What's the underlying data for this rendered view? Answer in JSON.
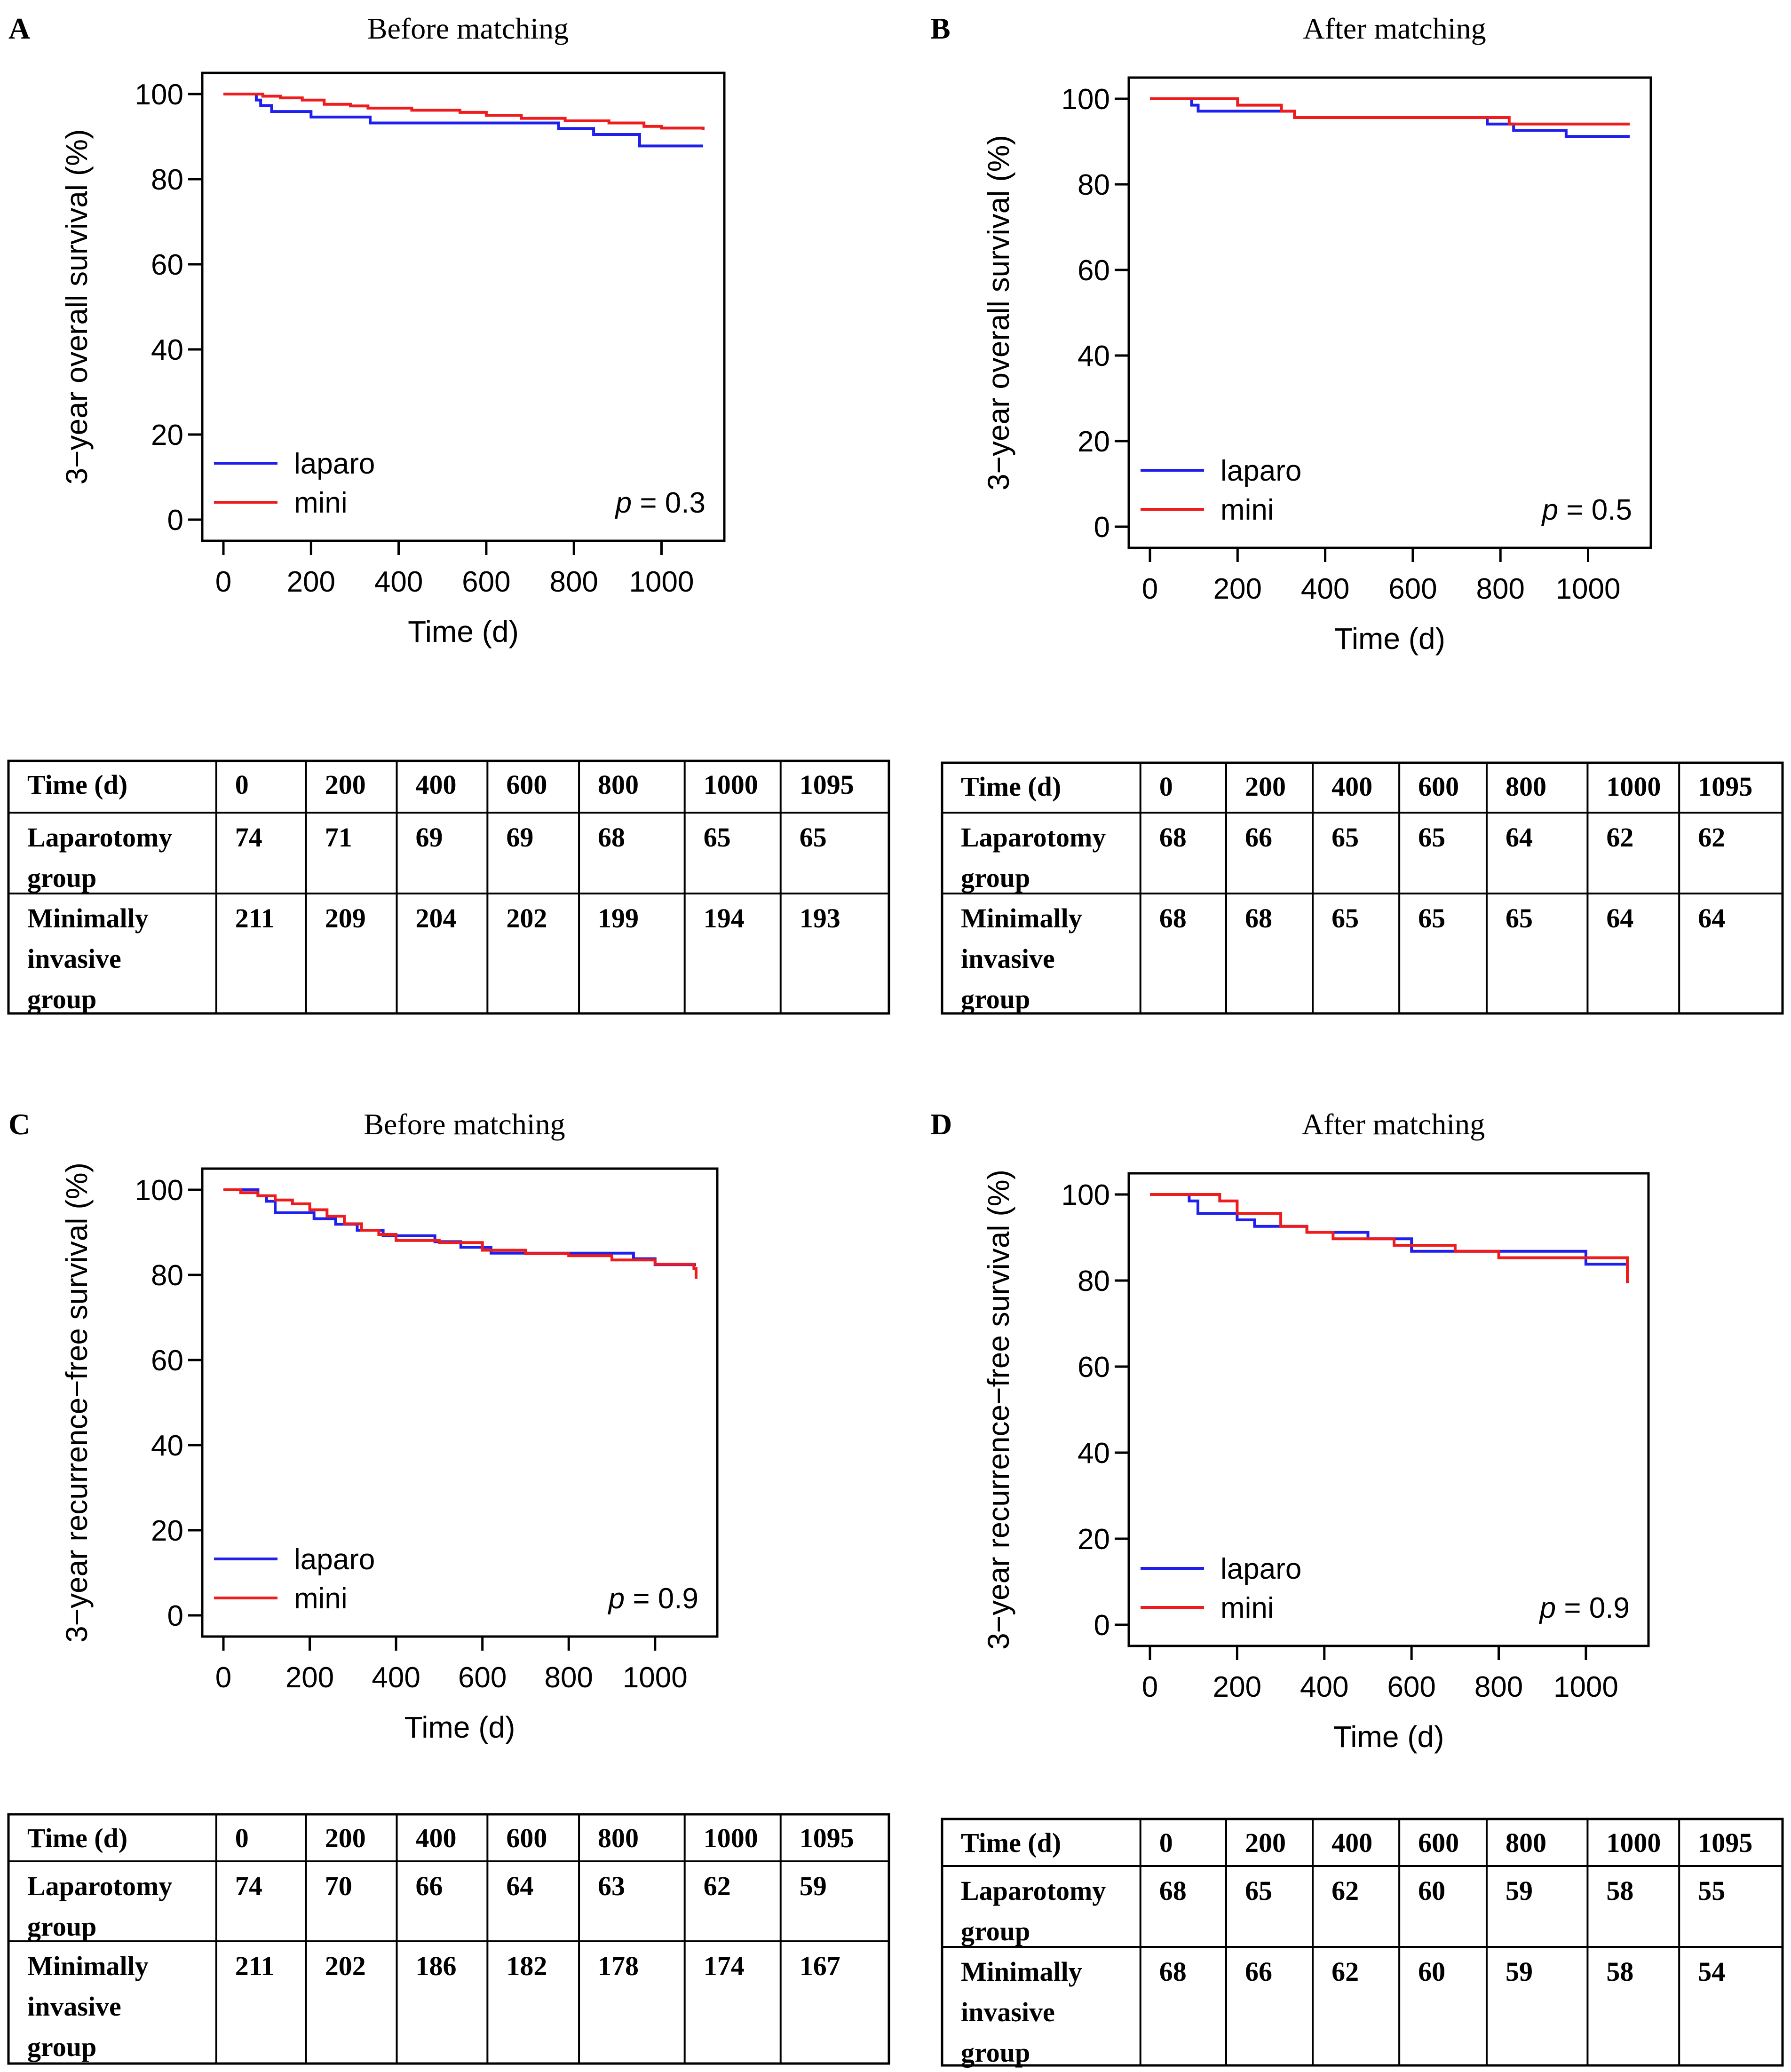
{
  "time_header": "Time (d)",
  "row_labels": {
    "laparotomy": [
      "Laparotomy",
      "group"
    ],
    "minimally": [
      "Minimally",
      "invasive",
      "group"
    ]
  },
  "colors": {
    "laparo": "#2020ee",
    "mini": "#ee1c1c"
  },
  "chart_data": [
    {
      "id": "A",
      "letter": "A",
      "type": "line",
      "title": "Before matching",
      "ylabel": "3−year overall survival (%)",
      "xlabel": "Time (d)",
      "xlim": [
        0,
        1095
      ],
      "ylim": [
        0,
        100
      ],
      "xticks": [
        0,
        200,
        400,
        600,
        800,
        1000
      ],
      "yticks": [
        0,
        20,
        40,
        60,
        80,
        100
      ],
      "legend_position": "bottom-left",
      "pvalue_label": "p",
      "pvalue_text": " = 0.3",
      "series": [
        {
          "name": "laparo",
          "color": "#2020ee",
          "x": [
            0,
            75,
            85,
            110,
            200,
            335,
            400,
            600,
            765,
            800,
            845,
            950,
            1095
          ],
          "y": [
            100,
            98.6,
            97.3,
            95.9,
            94.6,
            93.2,
            93.2,
            93.2,
            91.9,
            91.9,
            90.5,
            87.8,
            87.8
          ]
        },
        {
          "name": "mini",
          "color": "#ee1c1c",
          "x": [
            0,
            90,
            130,
            180,
            230,
            290,
            330,
            430,
            540,
            600,
            680,
            780,
            880,
            960,
            1000,
            1095
          ],
          "y": [
            100,
            99.5,
            99.1,
            98.6,
            97.6,
            97.2,
            96.7,
            96.2,
            95.7,
            95.0,
            94.3,
            93.7,
            93.2,
            92.4,
            92.0,
            91.5
          ]
        }
      ],
      "table": {
        "times": [
          "0",
          "200",
          "400",
          "600",
          "800",
          "1000",
          "1095"
        ],
        "laparotomy": [
          "74",
          "71",
          "69",
          "69",
          "68",
          "65",
          "65"
        ],
        "minimally": [
          "211",
          "209",
          "204",
          "202",
          "199",
          "194",
          "193"
        ]
      }
    },
    {
      "id": "B",
      "letter": "B",
      "type": "line",
      "title": "After matching",
      "ylabel": "3−year overall survival (%)",
      "xlabel": "Time (d)",
      "xlim": [
        0,
        1095
      ],
      "ylim": [
        0,
        100
      ],
      "xticks": [
        0,
        200,
        400,
        600,
        800,
        1000
      ],
      "yticks": [
        0,
        20,
        40,
        60,
        80,
        100
      ],
      "legend_position": "bottom-left",
      "pvalue_label": "p",
      "pvalue_text": " = 0.5",
      "series": [
        {
          "name": "laparo",
          "color": "#2020ee",
          "x": [
            0,
            95,
            110,
            330,
            400,
            770,
            830,
            950,
            1095
          ],
          "y": [
            100,
            98.5,
            97.1,
            95.6,
            95.6,
            94.1,
            92.6,
            91.2,
            91.2
          ]
        },
        {
          "name": "mini",
          "color": "#ee1c1c",
          "x": [
            0,
            200,
            300,
            330,
            820,
            1095
          ],
          "y": [
            100,
            98.5,
            97.1,
            95.6,
            94.1,
            94.1
          ]
        }
      ],
      "table": {
        "times": [
          "0",
          "200",
          "400",
          "600",
          "800",
          "1000",
          "1095"
        ],
        "laparotomy": [
          "68",
          "66",
          "65",
          "65",
          "64",
          "62",
          "62"
        ],
        "minimally": [
          "68",
          "68",
          "65",
          "65",
          "65",
          "64",
          "64"
        ]
      }
    },
    {
      "id": "C",
      "letter": "C",
      "type": "line",
      "title": "Before matching",
      "ylabel": "3−year recurrence−free survival (%)",
      "xlabel": "Time (d)",
      "xlim": [
        0,
        1095
      ],
      "ylim": [
        0,
        100
      ],
      "xticks": [
        0,
        200,
        400,
        600,
        800,
        1000
      ],
      "yticks": [
        0,
        20,
        40,
        60,
        80,
        100
      ],
      "legend_position": "bottom-left",
      "pvalue_label": "p",
      "pvalue_text": " = 0.9",
      "series": [
        {
          "name": "laparo",
          "color": "#2020ee",
          "x": [
            0,
            80,
            100,
            120,
            210,
            260,
            310,
            370,
            490,
            550,
            620,
            950,
            1000,
            1095
          ],
          "y": [
            100,
            98.6,
            97.3,
            94.6,
            93.2,
            91.9,
            90.5,
            89.2,
            87.8,
            86.5,
            85.1,
            83.8,
            82.4,
            82.4
          ]
        },
        {
          "name": "mini",
          "color": "#ee1c1c",
          "x": [
            0,
            40,
            80,
            120,
            160,
            200,
            240,
            280,
            320,
            360,
            400,
            500,
            600,
            700,
            800,
            900,
            1000,
            1090,
            1095
          ],
          "y": [
            100,
            99.3,
            98.6,
            97.6,
            96.7,
            95.3,
            93.8,
            92.0,
            90.5,
            89.5,
            88.1,
            87.6,
            85.8,
            85.0,
            84.5,
            83.5,
            82.5,
            81.5,
            79.1
          ]
        }
      ],
      "table": {
        "times": [
          "0",
          "200",
          "400",
          "600",
          "800",
          "1000",
          "1095"
        ],
        "laparotomy": [
          "74",
          "70",
          "66",
          "64",
          "63",
          "62",
          "59"
        ],
        "minimally": [
          "211",
          "202",
          "186",
          "182",
          "178",
          "174",
          "167"
        ]
      }
    },
    {
      "id": "D",
      "letter": "D",
      "type": "line",
      "title": "After matching",
      "ylabel": "3−year recurrence−free survival (%)",
      "xlabel": "Time (d)",
      "xlim": [
        0,
        1095
      ],
      "ylim": [
        0,
        100
      ],
      "xticks": [
        0,
        200,
        400,
        600,
        800,
        1000
      ],
      "yticks": [
        0,
        20,
        40,
        60,
        80,
        100
      ],
      "legend_position": "bottom-left",
      "pvalue_label": "p",
      "pvalue_text": " = 0.9",
      "series": [
        {
          "name": "laparo",
          "color": "#2020ee",
          "x": [
            0,
            90,
            110,
            200,
            240,
            360,
            500,
            600,
            830,
            1000,
            1095
          ],
          "y": [
            100,
            98.5,
            95.6,
            94.1,
            92.6,
            91.2,
            89.7,
            86.8,
            86.8,
            83.8,
            83.8
          ]
        },
        {
          "name": "mini",
          "color": "#ee1c1c",
          "x": [
            0,
            160,
            200,
            300,
            360,
            420,
            560,
            700,
            800,
            950,
            1090,
            1095
          ],
          "y": [
            100,
            98.5,
            95.6,
            92.6,
            91.2,
            89.7,
            88.2,
            86.8,
            85.3,
            85.3,
            85.3,
            79.4
          ]
        }
      ],
      "table": {
        "times": [
          "0",
          "200",
          "400",
          "600",
          "800",
          "1000",
          "1095"
        ],
        "laparotomy": [
          "68",
          "65",
          "62",
          "60",
          "59",
          "58",
          "55"
        ],
        "minimally": [
          "68",
          "66",
          "62",
          "60",
          "59",
          "58",
          "54"
        ]
      }
    }
  ]
}
